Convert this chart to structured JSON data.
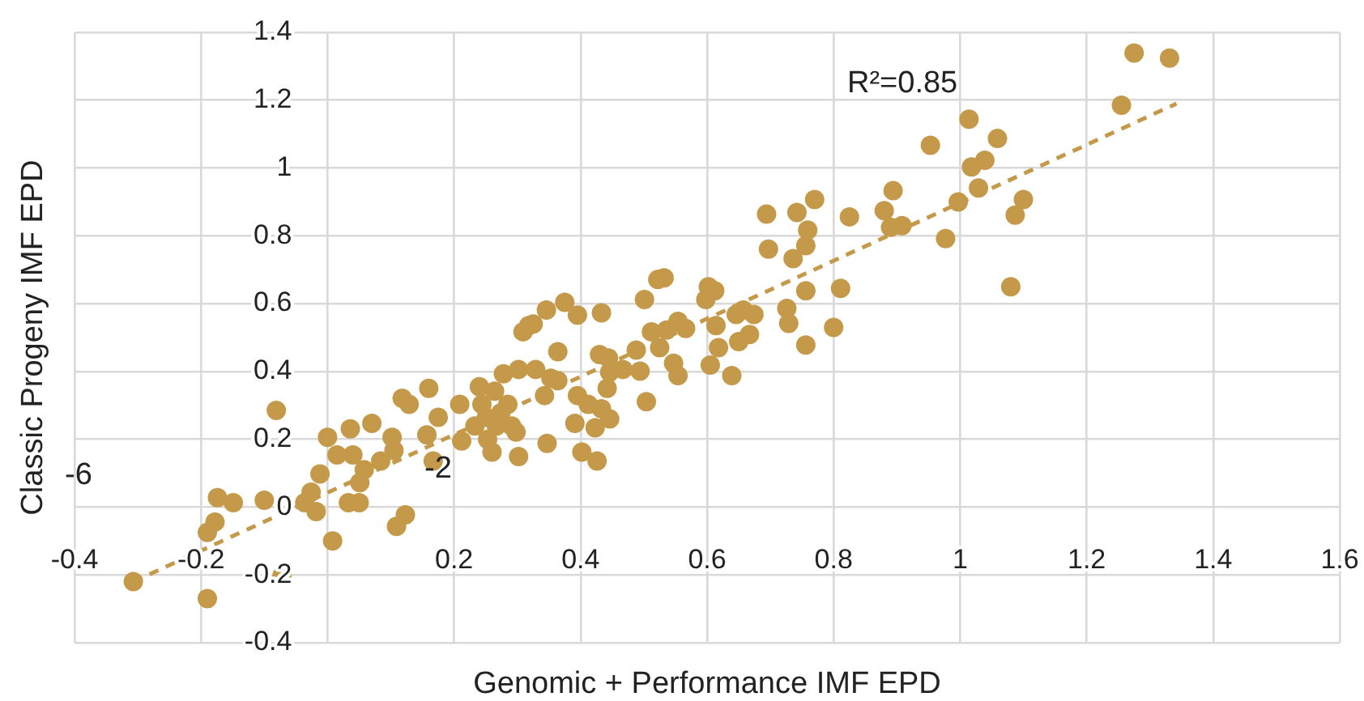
{
  "chart_data": {
    "type": "scatter",
    "xlabel": "Genomic + Performance IMF EPD",
    "ylabel": "Classic Progeny IMF EPD",
    "xlim": [
      -0.4,
      1.6
    ],
    "ylim": [
      -0.4,
      1.4
    ],
    "xticks": [
      -0.4,
      -0.2,
      {
        "value": 0,
        "label": null
      },
      0.2,
      0.4,
      0.6,
      0.8,
      1,
      1.2,
      1.4,
      1.6
    ],
    "yticks": [
      -0.4,
      -0.2,
      0,
      0.2,
      0.4,
      0.6,
      0.8,
      1,
      1.2,
      1.4
    ],
    "grid": true,
    "legend": false,
    "marker": "circle",
    "annotations": [
      "R²=0.85",
      "-6",
      "-2"
    ],
    "series": [
      {
        "color": "#c49a4a",
        "x": [
          -0.307,
          -0.19,
          -0.19,
          -0.178,
          -0.174,
          -0.149,
          -0.1,
          -0.081,
          -0.072,
          -0.036,
          -0.026,
          -0.018,
          -0.012,
          0,
          0.008,
          0.015,
          0.036,
          0.033,
          0.05,
          0.04,
          0.051,
          0.058,
          0.07,
          0.084,
          0.102,
          0.105,
          0.109,
          0.123,
          0.118,
          0.129,
          0.16,
          0.157,
          0.167,
          0.175,
          0.209,
          0.212,
          0.233,
          0.24,
          0.244,
          0.251,
          0.253,
          0.26,
          0.264,
          0.267,
          0.274,
          0.278,
          0.285,
          0.291,
          0.298,
          0.302,
          0.302,
          0.309,
          0.318,
          0.325,
          0.329,
          0.343,
          0.346,
          0.347,
          0.353,
          0.364,
          0.364,
          0.375,
          0.391,
          0.395,
          0.395,
          0.402,
          0.412,
          0.423,
          0.426,
          0.43,
          0.433,
          0.433,
          0.442,
          0.446,
          0.444,
          0.446,
          0.467,
          0.488,
          0.494,
          0.501,
          0.504,
          0.512,
          0.522,
          0.532,
          0.525,
          0.536,
          0.547,
          0.554,
          0.554,
          0.566,
          0.598,
          0.602,
          0.605,
          0.612,
          0.614,
          0.618,
          0.639,
          0.646,
          0.65,
          0.657,
          0.667,
          0.674,
          0.694,
          0.697,
          0.726,
          0.729,
          0.736,
          0.742,
          0.756,
          0.756,
          0.759,
          0.756,
          0.77,
          0.8,
          0.811,
          0.825,
          0.88,
          0.89,
          0.894,
          0.908,
          0.953,
          0.977,
          0.997,
          1.014,
          1.018,
          1.029,
          1.039,
          1.059,
          1.08,
          1.087,
          1.1,
          1.255,
          1.275,
          1.331
        ],
        "values": [
          -0.22,
          -0.27,
          -0.075,
          -0.044,
          0.028,
          0.013,
          0.02,
          0.285,
          -0.203,
          0.013,
          0.044,
          -0.013,
          0.098,
          0.206,
          -0.1,
          0.154,
          0.231,
          0.013,
          0.013,
          0.154,
          0.072,
          0.11,
          0.247,
          0.136,
          0.206,
          0.167,
          -0.057,
          -0.023,
          0.321,
          0.303,
          0.35,
          0.213,
          0.136,
          0.265,
          0.303,
          0.195,
          0.239,
          0.355,
          0.303,
          0.265,
          0.2,
          0.162,
          0.342,
          0.239,
          0.278,
          0.393,
          0.303,
          0.239,
          0.221,
          0.406,
          0.149,
          0.517,
          0.535,
          0.54,
          0.406,
          0.329,
          0.581,
          0.188,
          0.38,
          0.458,
          0.373,
          0.604,
          0.247,
          0.566,
          0.329,
          0.162,
          0.303,
          0.234,
          0.136,
          0.45,
          0.573,
          0.29,
          0.35,
          0.26,
          0.44,
          0.398,
          0.406,
          0.463,
          0.401,
          0.612,
          0.311,
          0.517,
          0.671,
          0.676,
          0.47,
          0.522,
          0.424,
          0.388,
          0.548,
          0.527,
          0.612,
          0.65,
          0.419,
          0.638,
          0.535,
          0.47,
          0.388,
          0.568,
          0.488,
          0.581,
          0.509,
          0.568,
          0.864,
          0.761,
          0.586,
          0.542,
          0.733,
          0.869,
          0.771,
          0.638,
          0.817,
          0.478,
          0.907,
          0.53,
          0.645,
          0.856,
          0.874,
          0.825,
          0.933,
          0.83,
          1.067,
          0.792,
          0.9,
          1.144,
          1.003,
          0.941,
          1.023,
          1.087,
          0.65,
          0.861,
          0.907,
          1.185,
          1.339,
          1.324
        ]
      },
      {
        "type": "line",
        "color": "#c49a4a",
        "line_style": "dashed",
        "marker": "none",
        "x": [
          -0.307,
          1.342
        ],
        "values": [
          -0.22,
          1.19
        ]
      }
    ]
  }
}
